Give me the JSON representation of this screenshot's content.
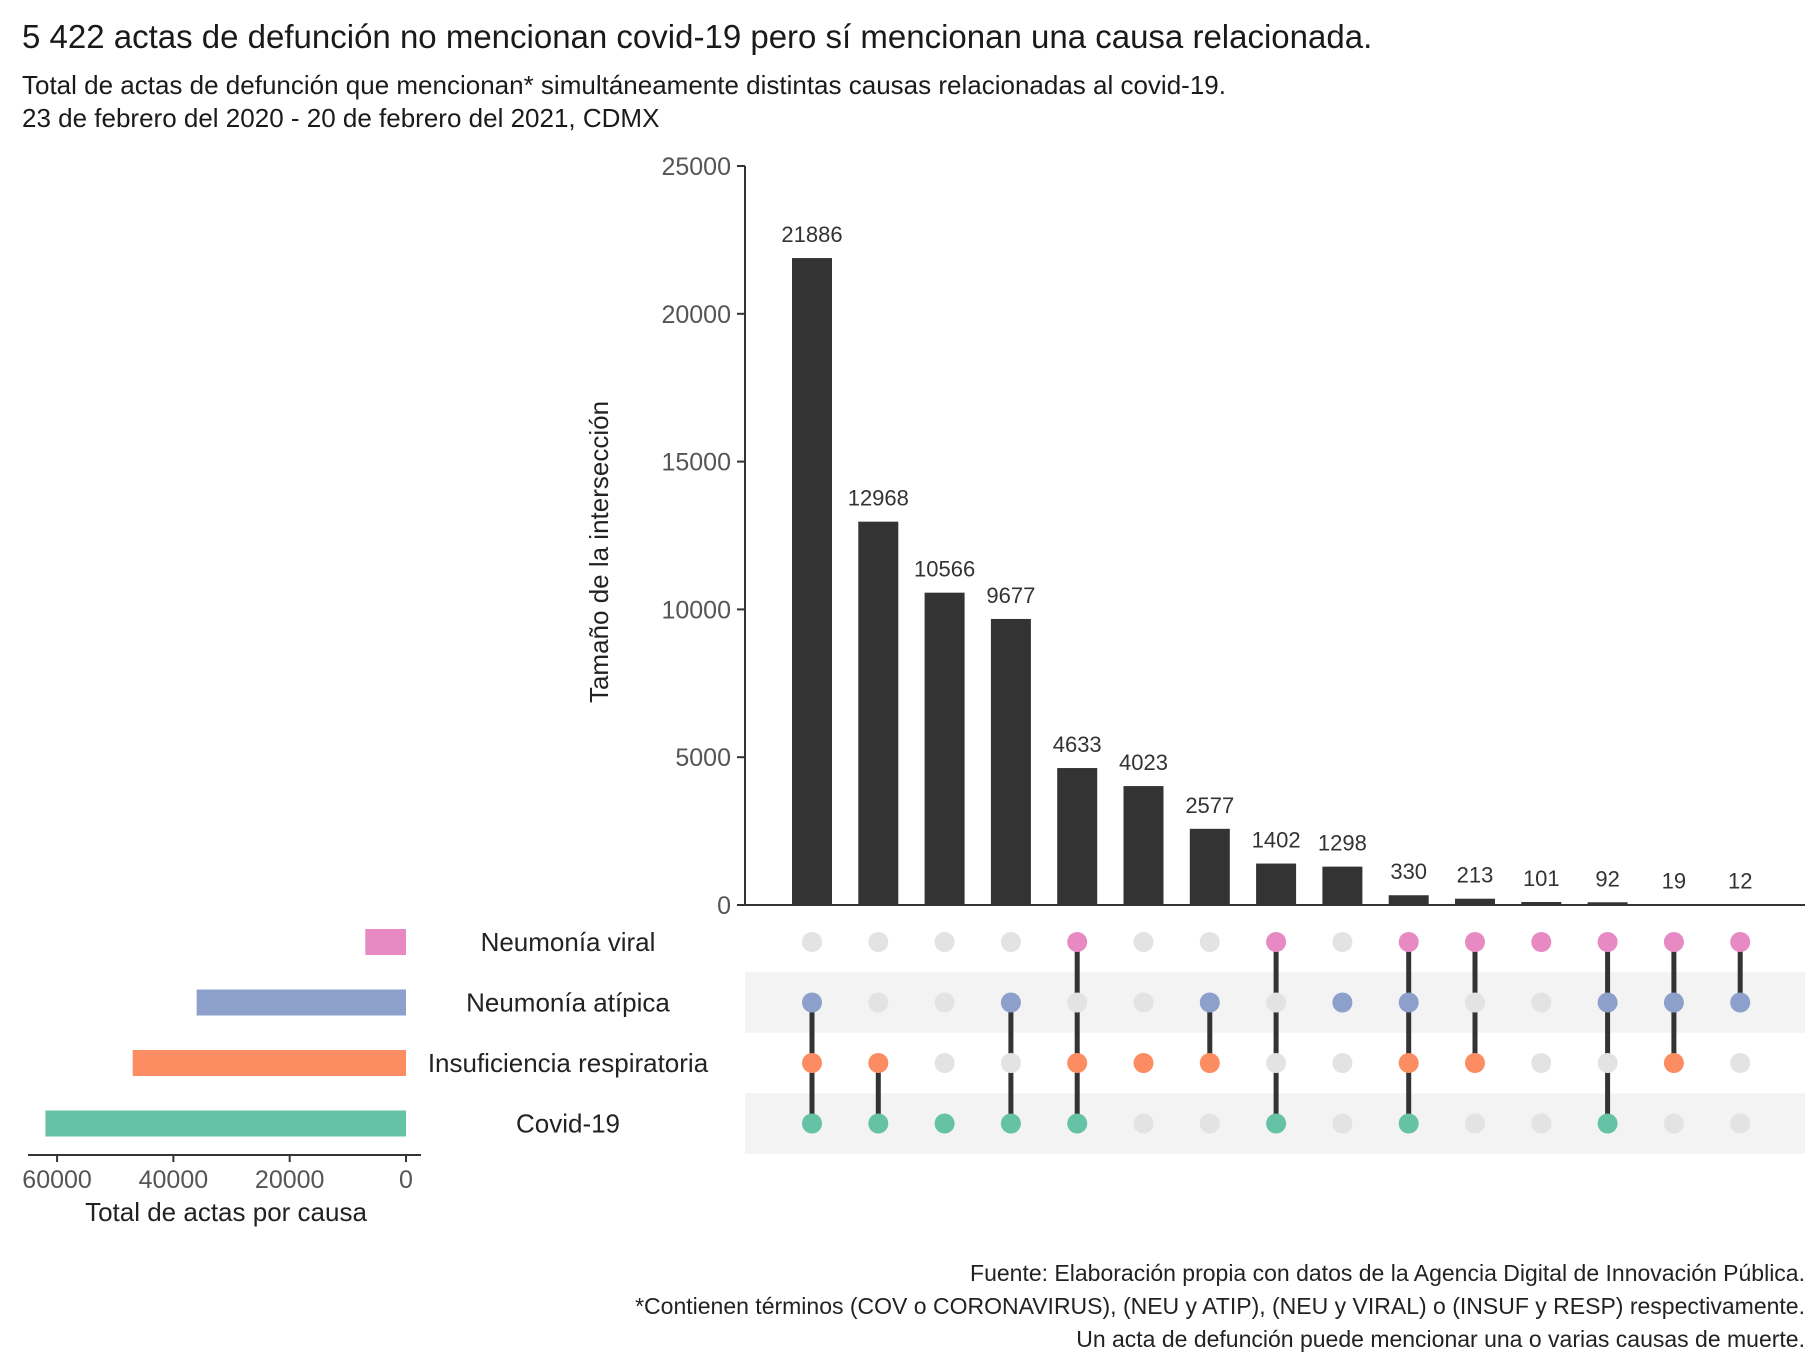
{
  "title": "5 422 actas de defunción no mencionan covid-19 pero sí mencionan una causa relacionada.",
  "subtitle_line1": "Total de actas de defunción que mencionan* simultáneamente distintas causas relacionadas al covid-19.",
  "subtitle_line2": "23 de febrero del 2020 - 20 de febrero del 2021, CDMX",
  "footer": [
    "Fuente: Elaboración propia con datos de la Agencia Digital de Innovación Pública.",
    "*Contienen términos (COV o CORONAVIRUS), (NEU y ATIP), (NEU y VIRAL) o (INSUF y RESP) respectivamente.",
    "Un acta de defunción puede mencionar una o varias causas de muerte."
  ],
  "chart_data": {
    "type": "upset",
    "ylabel": "Tamaño de la intersección",
    "ylim": [
      0,
      25000
    ],
    "yticks": [
      0,
      5000,
      10000,
      15000,
      20000,
      25000
    ],
    "sets": [
      {
        "name": "Neumonía viral",
        "color": "#e78ac3",
        "total": 7000
      },
      {
        "name": "Neumonía atípica",
        "color": "#8da0cb",
        "total": 36000
      },
      {
        "name": "Insuficiencia respiratoria",
        "color": "#fc8d62",
        "total": 47000
      },
      {
        "name": "Covid-19",
        "color": "#66c2a5",
        "total": 62000
      }
    ],
    "set_axis_label": "Total de actas por causa",
    "set_xlim": [
      0,
      65000
    ],
    "set_xticks": [
      60000,
      40000,
      20000,
      0
    ],
    "intersections": [
      {
        "value": 21886,
        "label": "21886",
        "members": [
          "Neumonía atípica",
          "Insuficiencia respiratoria",
          "Covid-19"
        ]
      },
      {
        "value": 12968,
        "label": "12968",
        "members": [
          "Insuficiencia respiratoria",
          "Covid-19"
        ]
      },
      {
        "value": 10566,
        "label": "10566",
        "members": [
          "Covid-19"
        ]
      },
      {
        "value": 9677,
        "label": "9677",
        "members": [
          "Neumonía atípica",
          "Covid-19"
        ]
      },
      {
        "value": 4633,
        "label": "4633",
        "members": [
          "Neumonía viral",
          "Insuficiencia respiratoria",
          "Covid-19"
        ]
      },
      {
        "value": 4023,
        "label": "4023",
        "members": [
          "Insuficiencia respiratoria"
        ]
      },
      {
        "value": 2577,
        "label": "2577",
        "members": [
          "Neumonía atípica",
          "Insuficiencia respiratoria"
        ]
      },
      {
        "value": 1402,
        "label": "1402",
        "members": [
          "Neumonía viral",
          "Covid-19"
        ]
      },
      {
        "value": 1298,
        "label": "1298",
        "members": [
          "Neumonía atípica"
        ]
      },
      {
        "value": 330,
        "label": "330",
        "members": [
          "Neumonía viral",
          "Neumonía atípica",
          "Insuficiencia respiratoria",
          "Covid-19"
        ]
      },
      {
        "value": 213,
        "label": "213",
        "members": [
          "Neumonía viral",
          "Insuficiencia respiratoria"
        ]
      },
      {
        "value": 101,
        "label": "101",
        "members": [
          "Neumonía viral"
        ]
      },
      {
        "value": 92,
        "label": "92",
        "members": [
          "Neumonía viral",
          "Neumonía atípica",
          "Covid-19"
        ]
      },
      {
        "value": 19,
        "label": "19",
        "members": [
          "Neumonía viral",
          "Neumonía atípica",
          "Insuficiencia respiratoria"
        ]
      },
      {
        "value": 12,
        "label": "12",
        "members": [
          "Neumonía viral",
          "Neumonía atípica"
        ]
      }
    ],
    "bar_color": "#333333",
    "inactive_dot_color": "#e3e3e3",
    "stripe_color": "#f3f3f3"
  }
}
